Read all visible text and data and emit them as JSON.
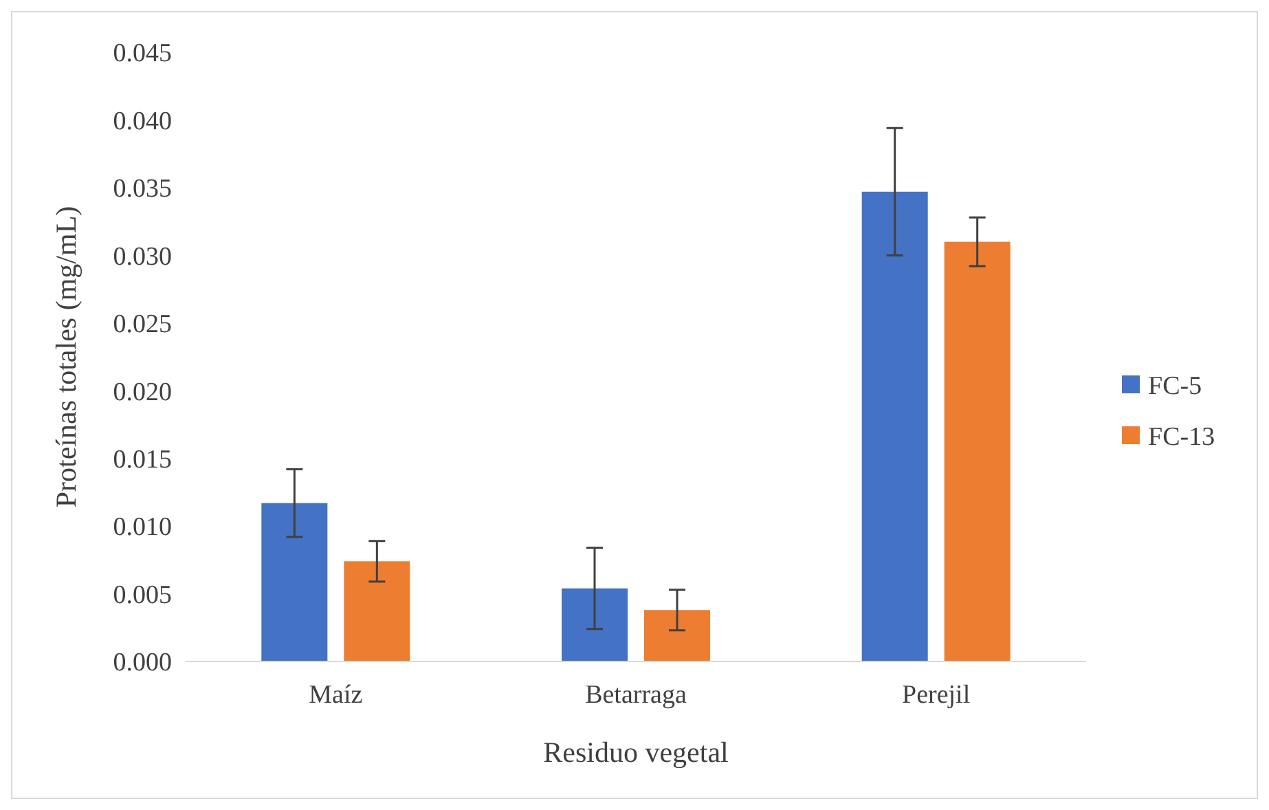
{
  "chart_data": {
    "type": "bar",
    "xlabel": "Residuo vegetal",
    "ylabel": "Proteínas totales (mg/mL)",
    "categories": [
      "Maíz",
      "Betarraga",
      "Perejil"
    ],
    "series": [
      {
        "name": "FC-5",
        "color": "#4472c4",
        "values": [
          0.0117,
          0.0054,
          0.0347
        ],
        "errors": [
          0.0025,
          0.003,
          0.0047
        ]
      },
      {
        "name": "FC-13",
        "color": "#ed7d31",
        "values": [
          0.0074,
          0.0038,
          0.031
        ],
        "errors": [
          0.0015,
          0.0015,
          0.0018
        ]
      }
    ],
    "ylim": [
      0,
      0.045
    ],
    "yticks": [
      {
        "value": 0,
        "label": "0.000"
      },
      {
        "value": 0.005,
        "label": "0.005"
      },
      {
        "value": 0.01,
        "label": "0.010"
      },
      {
        "value": 0.015,
        "label": "0.015"
      },
      {
        "value": 0.02,
        "label": "0.020"
      },
      {
        "value": 0.025,
        "label": "0.025"
      },
      {
        "value": 0.03,
        "label": "0.030"
      },
      {
        "value": 0.035,
        "label": "0.035"
      },
      {
        "value": 0.04,
        "label": "0.040"
      },
      {
        "value": 0.045,
        "label": "0.045"
      }
    ],
    "grid": false,
    "legend": "right"
  }
}
